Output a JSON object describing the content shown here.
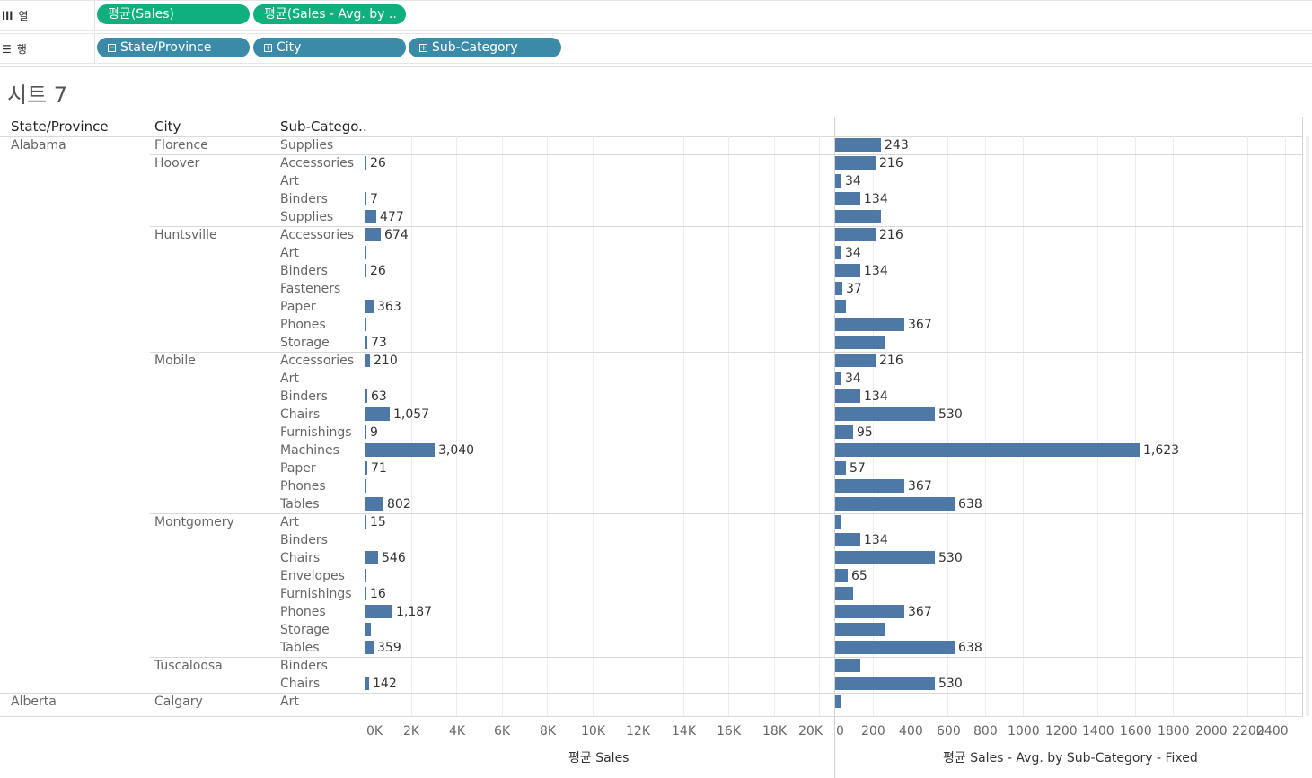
{
  "shelves": {
    "columns": {
      "label": "열",
      "icon": "columns-icon",
      "pills": [
        "평균(Sales)",
        "평균(Sales - Avg. by .."
      ]
    },
    "rows": {
      "label": "행",
      "icon": "rows-icon",
      "pills": [
        "State/Province",
        "City",
        "Sub-Category"
      ]
    }
  },
  "sheet_title": "시트 7",
  "headers": {
    "state": "State/Province",
    "city": "City",
    "subcat": "Sub-Catego.."
  },
  "rows": [
    {
      "state": "Alabama",
      "city": "Florence",
      "sub": "Supplies",
      "sales": null,
      "sales_label": "",
      "avg": 243,
      "avg_label": "243"
    },
    {
      "state": "",
      "city": "Hoover",
      "sub": "Accessories",
      "sales": 26,
      "sales_label": "26",
      "avg": 216,
      "avg_label": "216"
    },
    {
      "state": "",
      "city": "",
      "sub": "Art",
      "sales": null,
      "sales_label": "",
      "avg": 34,
      "avg_label": "34"
    },
    {
      "state": "",
      "city": "",
      "sub": "Binders",
      "sales": 7,
      "sales_label": "7",
      "avg": 134,
      "avg_label": "134"
    },
    {
      "state": "",
      "city": "",
      "sub": "Supplies",
      "sales": 477,
      "sales_label": "477",
      "avg": 243,
      "avg_label": ""
    },
    {
      "state": "",
      "city": "Huntsville",
      "sub": "Accessories",
      "sales": 674,
      "sales_label": "674",
      "avg": 216,
      "avg_label": "216"
    },
    {
      "state": "",
      "city": "",
      "sub": "Art",
      "sales": 35,
      "sales_label": "",
      "avg": 34,
      "avg_label": "34"
    },
    {
      "state": "",
      "city": "",
      "sub": "Binders",
      "sales": 26,
      "sales_label": "26",
      "avg": 134,
      "avg_label": "134"
    },
    {
      "state": "",
      "city": "",
      "sub": "Fasteners",
      "sales": null,
      "sales_label": "",
      "avg": 37,
      "avg_label": "37"
    },
    {
      "state": "",
      "city": "",
      "sub": "Paper",
      "sales": 363,
      "sales_label": "363",
      "avg": 57,
      "avg_label": ""
    },
    {
      "state": "",
      "city": "",
      "sub": "Phones",
      "sales": 20,
      "sales_label": "",
      "avg": 367,
      "avg_label": "367"
    },
    {
      "state": "",
      "city": "",
      "sub": "Storage",
      "sales": 73,
      "sales_label": "73",
      "avg": 264,
      "avg_label": ""
    },
    {
      "state": "",
      "city": "Mobile",
      "sub": "Accessories",
      "sales": 210,
      "sales_label": "210",
      "avg": 216,
      "avg_label": "216"
    },
    {
      "state": "",
      "city": "",
      "sub": "Art",
      "sales": null,
      "sales_label": "",
      "avg": 34,
      "avg_label": "34"
    },
    {
      "state": "",
      "city": "",
      "sub": "Binders",
      "sales": 63,
      "sales_label": "63",
      "avg": 134,
      "avg_label": "134"
    },
    {
      "state": "",
      "city": "",
      "sub": "Chairs",
      "sales": 1057,
      "sales_label": "1,057",
      "avg": 530,
      "avg_label": "530"
    },
    {
      "state": "",
      "city": "",
      "sub": "Furnishings",
      "sales": 9,
      "sales_label": "9",
      "avg": 95,
      "avg_label": "95"
    },
    {
      "state": "",
      "city": "",
      "sub": "Machines",
      "sales": 3040,
      "sales_label": "3,040",
      "avg": 1623,
      "avg_label": "1,623"
    },
    {
      "state": "",
      "city": "",
      "sub": "Paper",
      "sales": 71,
      "sales_label": "71",
      "avg": 57,
      "avg_label": "57"
    },
    {
      "state": "",
      "city": "",
      "sub": "Phones",
      "sales": 20,
      "sales_label": "",
      "avg": 367,
      "avg_label": "367"
    },
    {
      "state": "",
      "city": "",
      "sub": "Tables",
      "sales": 802,
      "sales_label": "802",
      "avg": 638,
      "avg_label": "638"
    },
    {
      "state": "",
      "city": "Montgomery",
      "sub": "Art",
      "sales": 15,
      "sales_label": "15",
      "avg": 34,
      "avg_label": ""
    },
    {
      "state": "",
      "city": "",
      "sub": "Binders",
      "sales": null,
      "sales_label": "",
      "avg": 134,
      "avg_label": "134"
    },
    {
      "state": "",
      "city": "",
      "sub": "Chairs",
      "sales": 546,
      "sales_label": "546",
      "avg": 530,
      "avg_label": "530"
    },
    {
      "state": "",
      "city": "",
      "sub": "Envelopes",
      "sales": 30,
      "sales_label": "",
      "avg": 65,
      "avg_label": "65"
    },
    {
      "state": "",
      "city": "",
      "sub": "Furnishings",
      "sales": 16,
      "sales_label": "16",
      "avg": 95,
      "avg_label": ""
    },
    {
      "state": "",
      "city": "",
      "sub": "Phones",
      "sales": 1187,
      "sales_label": "1,187",
      "avg": 367,
      "avg_label": "367"
    },
    {
      "state": "",
      "city": "",
      "sub": "Storage",
      "sales": 230,
      "sales_label": "",
      "avg": 264,
      "avg_label": ""
    },
    {
      "state": "",
      "city": "",
      "sub": "Tables",
      "sales": 359,
      "sales_label": "359",
      "avg": 638,
      "avg_label": "638"
    },
    {
      "state": "",
      "city": "Tuscaloosa",
      "sub": "Binders",
      "sales": null,
      "sales_label": "",
      "avg": 134,
      "avg_label": ""
    },
    {
      "state": "",
      "city": "",
      "sub": "Chairs",
      "sales": 142,
      "sales_label": "142",
      "avg": 530,
      "avg_label": "530"
    },
    {
      "state": "Alberta",
      "city": "Calgary",
      "sub": "Art",
      "sales": null,
      "sales_label": "",
      "avg": 34,
      "avg_label": ""
    }
  ],
  "chart_data": [
    {
      "type": "bar",
      "orientation": "horizontal",
      "xlabel": "평균 Sales",
      "xlim": [
        0,
        20000
      ],
      "ticks": [
        "0K",
        "2K",
        "4K",
        "6K",
        "8K",
        "10K",
        "12K",
        "14K",
        "16K",
        "18K",
        "20K"
      ],
      "field": "sales"
    },
    {
      "type": "bar",
      "orientation": "horizontal",
      "xlabel": "평균 Sales - Avg. by Sub-Category - Fixed",
      "xlim": [
        0,
        2400
      ],
      "ticks": [
        "0",
        "200",
        "400",
        "600",
        "800",
        "1000",
        "1200",
        "1400",
        "1600",
        "1800",
        "2000",
        "2200",
        "2400"
      ],
      "field": "avg"
    }
  ],
  "colors": {
    "bar": "#4e79a7",
    "pill_measure": "#0fb07d",
    "pill_dimension": "#3b8aa7"
  }
}
